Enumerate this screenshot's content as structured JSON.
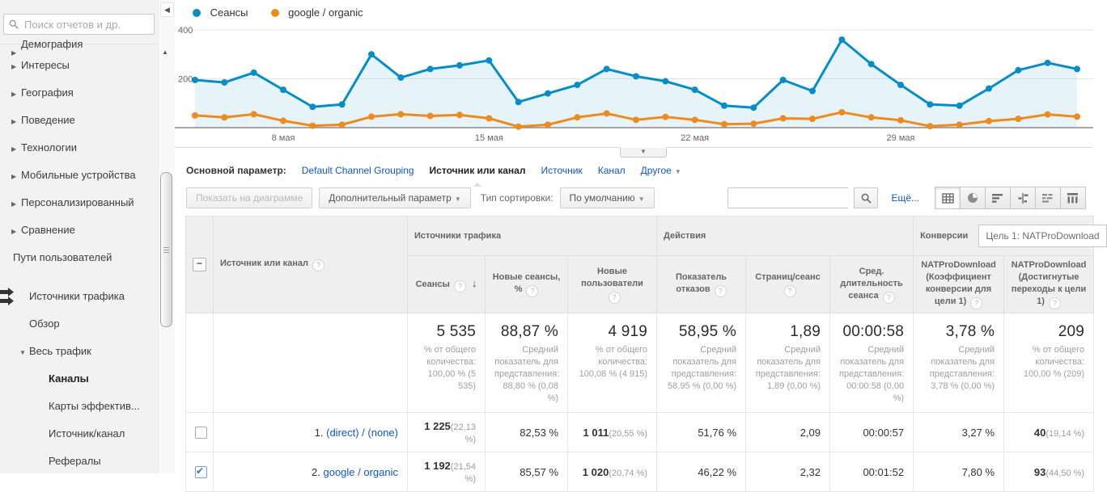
{
  "colors": {
    "link": "#1155cc",
    "series_blue": "#058dc7",
    "series_orange": "#ee8a1e",
    "area_fill": "rgba(5,141,199,0.10)",
    "grid": "#e6e6e6",
    "axis": "#8c8c8c"
  },
  "sidebar": {
    "search_placeholder": "Поиск отчетов и др.",
    "items": [
      {
        "id": "demographics",
        "label": "Демография",
        "type": "top",
        "arrow": "right",
        "cut": true
      },
      {
        "id": "interests",
        "label": "Интересы",
        "type": "top",
        "arrow": "right"
      },
      {
        "id": "geo",
        "label": "География",
        "type": "top",
        "arrow": "right"
      },
      {
        "id": "behavior",
        "label": "Поведение",
        "type": "top",
        "arrow": "right"
      },
      {
        "id": "technology",
        "label": "Технологии",
        "type": "top",
        "arrow": "right"
      },
      {
        "id": "mobile",
        "label": "Мобильные устройства",
        "type": "top",
        "arrow": "right"
      },
      {
        "id": "custom",
        "label": "Персонализированный",
        "type": "top",
        "arrow": "right"
      },
      {
        "id": "benchmarking",
        "label": "Сравнение",
        "type": "top",
        "arrow": "right"
      },
      {
        "id": "user-flow",
        "label": "Пути пользователей",
        "type": "plain"
      },
      {
        "id": "acquisition",
        "label": "Источники трафика",
        "type": "section",
        "icon": "acquisition-icon"
      },
      {
        "id": "overview",
        "label": "Обзор",
        "type": "child"
      },
      {
        "id": "all-traffic",
        "label": "Весь трафик",
        "type": "child",
        "arrow": "down"
      },
      {
        "id": "channels",
        "label": "Каналы",
        "type": "subchild",
        "selected": true
      },
      {
        "id": "treemaps",
        "label": "Карты эффектив...",
        "type": "subchild"
      },
      {
        "id": "source-medium",
        "label": "Источник/канал",
        "type": "subchild"
      },
      {
        "id": "referrals",
        "label": "Рефералы",
        "type": "subchild"
      }
    ]
  },
  "chart_data": {
    "type": "line",
    "title": "",
    "ylim": [
      0,
      400
    ],
    "y_ticks": [
      {
        "value": 400,
        "label": "400"
      },
      {
        "value": 200,
        "label": "200"
      }
    ],
    "x_ticks": [
      {
        "index": 3,
        "label": "8 мая"
      },
      {
        "index": 10,
        "label": "15 мая"
      },
      {
        "index": 17,
        "label": "22 мая"
      },
      {
        "index": 24,
        "label": "29 мая"
      }
    ],
    "legend_position": "top-left",
    "series": [
      {
        "name": "Сеансы",
        "color": "#058dc7",
        "area": true,
        "values": [
          195,
          185,
          225,
          155,
          85,
          95,
          300,
          205,
          240,
          255,
          275,
          105,
          140,
          175,
          240,
          210,
          190,
          155,
          90,
          82,
          195,
          150,
          360,
          260,
          175,
          95,
          90,
          160,
          235,
          265,
          240
        ]
      },
      {
        "name": "google / organic",
        "color": "#ee8a1e",
        "area": false,
        "values": [
          50,
          42,
          55,
          28,
          8,
          12,
          45,
          55,
          48,
          52,
          38,
          4,
          12,
          42,
          58,
          32,
          44,
          32,
          14,
          16,
          38,
          36,
          63,
          42,
          30,
          6,
          12,
          27,
          36,
          54,
          45
        ]
      }
    ]
  },
  "dimension_bar": {
    "label": "Основной параметр:",
    "options": [
      {
        "label": "Default Channel Grouping",
        "selected": false
      },
      {
        "label": "Источник или канал",
        "selected": true
      },
      {
        "label": "Источник",
        "selected": false
      },
      {
        "label": "Канал",
        "selected": false
      },
      {
        "label": "Другое",
        "selected": false,
        "dropdown": true
      }
    ]
  },
  "toolbar": {
    "show_on_chart": "Показать на диаграмме",
    "secondary_dimension": "Дополнительный параметр",
    "sort_label": "Тип сортировки:",
    "sort_value": "По умолчанию",
    "search_value": "",
    "more_label": "Ещё...",
    "views": [
      "table",
      "percentage",
      "performance",
      "comparison",
      "term-cloud",
      "pivot"
    ]
  },
  "table": {
    "groups": {
      "traffic": "Источники трафика",
      "behavior": "Действия",
      "conversions": "Конверсии",
      "goal_selector": "Цель 1: NATProDownload"
    },
    "columns": {
      "source": "Источник или канал",
      "sessions": "Сеансы",
      "new_sessions": "Новые сеансы, %",
      "new_users": "Новые пользователи",
      "bounce": "Показатель отказов",
      "pages_session": "Страниц/сеанс",
      "avg_duration": "Сред. длительность сеанса",
      "goal_cr": "NATProDownload (Коэффициент конверсии для цели 1)",
      "goal_completions": "NATProDownload (Достигнутые переходы к цели 1)"
    },
    "summary": {
      "sessions": {
        "value": "5 535",
        "caption": "% от общего количества: 100,00 % (5 535)"
      },
      "new_sessions": {
        "value": "88,87 %",
        "caption": "Средний показатель для представления: 88,80 % (0,08 %)"
      },
      "new_users": {
        "value": "4 919",
        "caption": "% от общего количества: 100,08 % (4 915)"
      },
      "bounce": {
        "value": "58,95 %",
        "caption": "Средний показатель для представления: 58,95 % (0,00 %)"
      },
      "pages_session": {
        "value": "1,89",
        "caption": "Средний показатель для представления: 1,89 (0,00 %)"
      },
      "avg_duration": {
        "value": "00:00:58",
        "caption": "Средний показатель для представления: 00:00:58 (0,00 %)"
      },
      "goal_cr": {
        "value": "3,78 %",
        "caption": "Средний показатель для представления: 3,78 % (0,00 %)"
      },
      "goal_completions": {
        "value": "209",
        "caption": "% от общего количества: 100,00 % (209)"
      }
    },
    "rows": [
      {
        "num": "1.",
        "source": "(direct) / (none)",
        "checked": false,
        "sessions": "1 225",
        "sessions_pct": "(22,13 %)",
        "new_sessions": "82,53 %",
        "new_users": "1 011",
        "new_users_pct": "(20,55 %)",
        "bounce": "51,76 %",
        "pages_session": "2,09",
        "avg_duration": "00:00:57",
        "goal_cr": "3,27 %",
        "goal_completions": "40",
        "goal_completions_pct": "(19,14 %)"
      },
      {
        "num": "2.",
        "source": "google / organic",
        "checked": true,
        "sessions": "1 192",
        "sessions_pct": "(21,54 %)",
        "new_sessions": "85,57 %",
        "new_users": "1 020",
        "new_users_pct": "(20,74 %)",
        "bounce": "46,22 %",
        "pages_session": "2,32",
        "avg_duration": "00:01:52",
        "goal_cr": "7,80 %",
        "goal_completions": "93",
        "goal_completions_pct": "(44,50 %)"
      }
    ]
  }
}
